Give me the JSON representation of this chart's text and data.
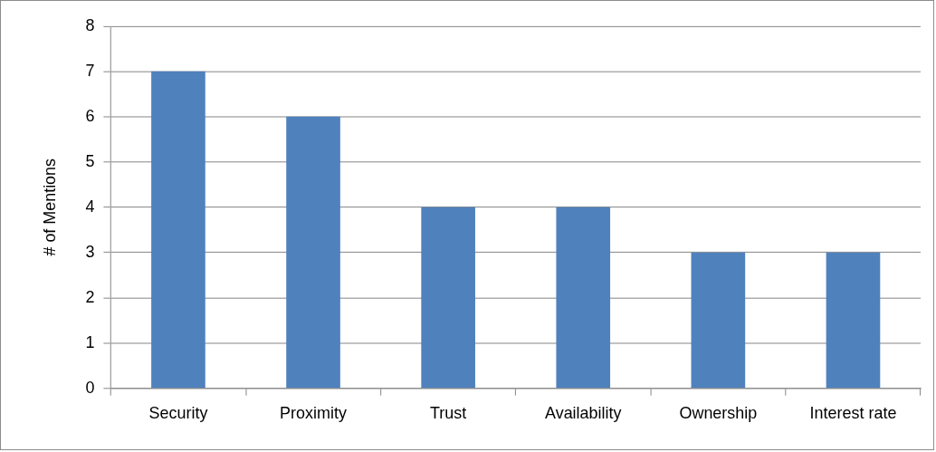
{
  "chart_data": {
    "type": "bar",
    "ylabel": "# of Mentions",
    "categories": [
      "Security",
      "Proximity",
      "Trust",
      "Availability",
      "Ownership",
      "Interest rate"
    ],
    "values": [
      7,
      6,
      4,
      4,
      3,
      3
    ],
    "color": "#4f81bd",
    "ylim": [
      0,
      8
    ],
    "yticks": [
      0,
      1,
      2,
      3,
      4,
      5,
      6,
      7,
      8
    ],
    "grid": "y",
    "legend": false
  }
}
